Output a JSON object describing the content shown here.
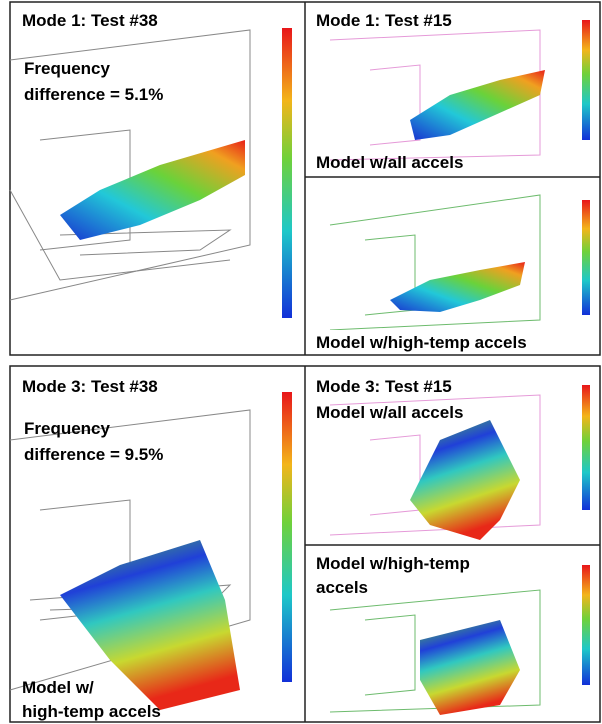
{
  "top_group": {
    "main": {
      "title": "Mode 1: Test #38",
      "note": [
        "Frequency",
        "difference = 5.1%"
      ]
    },
    "upper": {
      "title": "Mode 1: Test #15",
      "caption": "Model w/all accels"
    },
    "lower": {
      "caption": "Model w/high-temp accels"
    }
  },
  "bottom_group": {
    "main": {
      "title": "Mode 3: Test #38",
      "note": [
        "Frequency",
        "difference = 9.5%"
      ],
      "caption": [
        "Model w/",
        "high-temp accels"
      ]
    },
    "upper": {
      "title": "Mode 3: Test #15",
      "caption": "Model w/all accels"
    },
    "lower": {
      "caption": [
        "Model w/high-temp",
        "accels"
      ]
    }
  }
}
